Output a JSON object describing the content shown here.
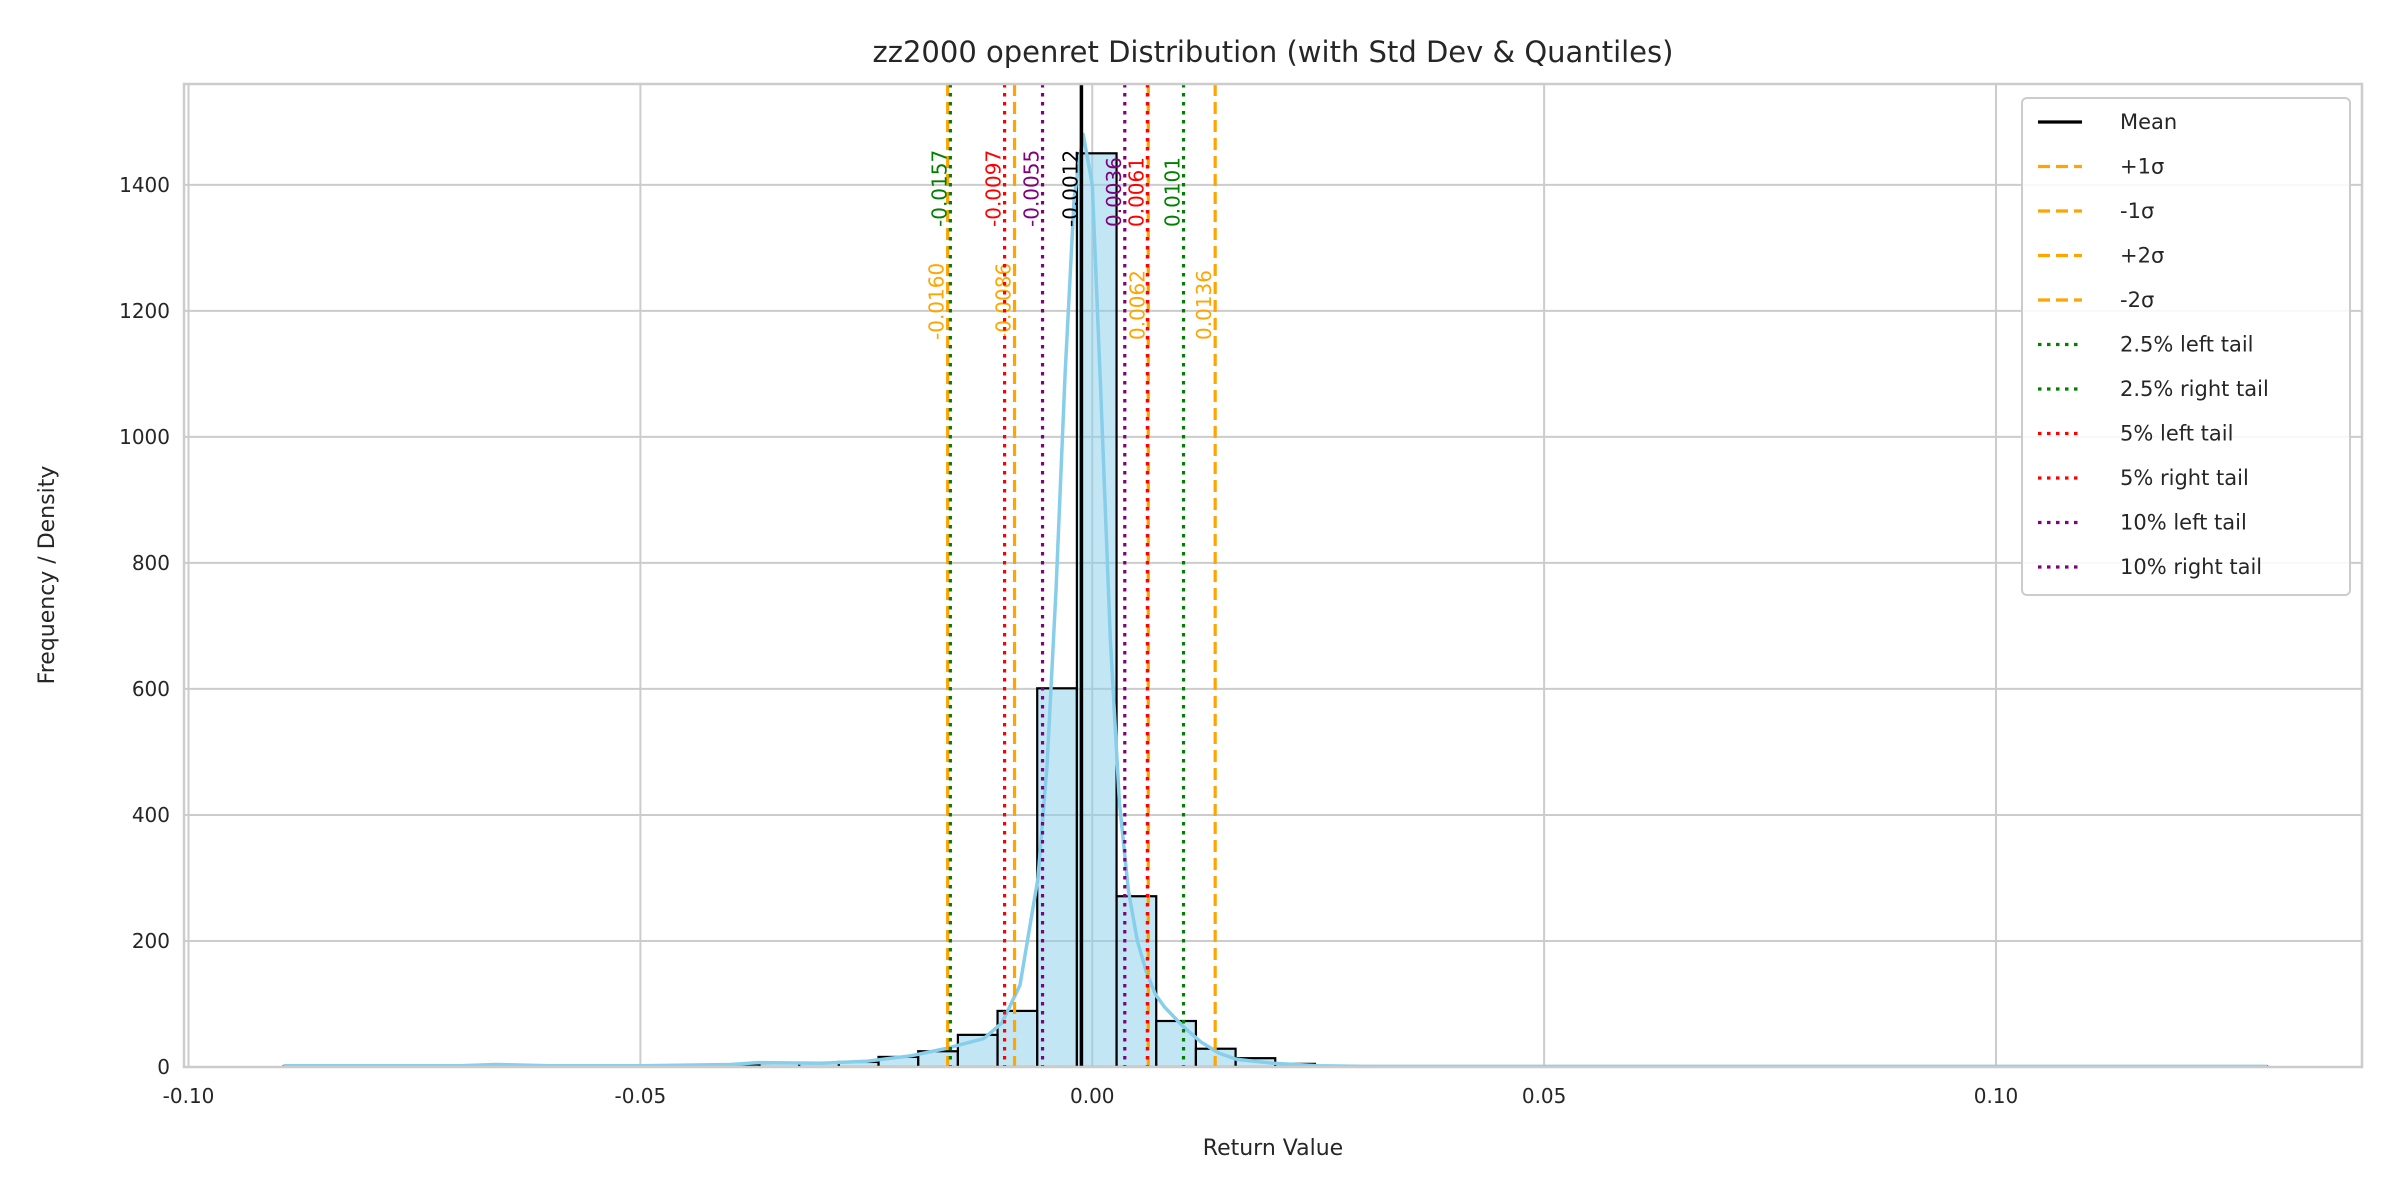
{
  "chart_data": {
    "type": "bar",
    "title": "zz2000 openret Distribution (with Std Dev & Quantiles)",
    "xlabel": "Return Value",
    "ylabel": "Frequency / Density",
    "xlim": [
      -0.1005,
      0.1405
    ],
    "ylim": [
      0,
      1560
    ],
    "grid": true,
    "legend_position": "top-right",
    "x_ticks": [
      {
        "value": -0.1,
        "label": "-0.10"
      },
      {
        "value": -0.05,
        "label": "-0.05"
      },
      {
        "value": 0.0,
        "label": "0.00"
      },
      {
        "value": 0.05,
        "label": "0.05"
      },
      {
        "value": 0.1,
        "label": "0.10"
      }
    ],
    "y_ticks": [
      {
        "value": 0,
        "label": "0"
      },
      {
        "value": 200,
        "label": "200"
      },
      {
        "value": 400,
        "label": "400"
      },
      {
        "value": 600,
        "label": "600"
      },
      {
        "value": 800,
        "label": "800"
      },
      {
        "value": 1000,
        "label": "1000"
      },
      {
        "value": 1200,
        "label": "1200"
      },
      {
        "value": 1400,
        "label": "1400"
      }
    ],
    "histogram": {
      "bin_start": -0.0895,
      "bin_width": 0.00439,
      "counts": [
        1,
        0,
        0,
        0,
        1,
        2,
        1,
        0,
        1,
        1,
        2,
        4,
        6,
        7,
        8,
        16,
        25,
        51,
        89,
        601,
        1450,
        271,
        73,
        29,
        14,
        5,
        2,
        1,
        1,
        0,
        1,
        0,
        0,
        0,
        1,
        0,
        0,
        0,
        0,
        0,
        0,
        0,
        0,
        0,
        0,
        0,
        0,
        0,
        0,
        1
      ],
      "fill": "#87ceeb",
      "edge": "#000000"
    },
    "kde": {
      "color": "#87ceeb",
      "x": [
        -0.0895,
        -0.07,
        -0.066,
        -0.06,
        -0.05,
        -0.04,
        -0.037,
        -0.03,
        -0.025,
        -0.02,
        -0.016,
        -0.012,
        -0.01,
        -0.008,
        -0.006,
        -0.005,
        -0.004,
        -0.003,
        -0.002,
        -0.001,
        0.0,
        0.001,
        0.002,
        0.003,
        0.004,
        0.005,
        0.006,
        0.007,
        0.008,
        0.01,
        0.012,
        0.014,
        0.016,
        0.02,
        0.025,
        0.03,
        0.05,
        0.07,
        0.1,
        0.13
      ],
      "y": [
        2,
        2,
        4,
        2,
        2,
        4,
        7,
        6,
        9,
        18,
        30,
        45,
        70,
        130,
        300,
        480,
        760,
        1100,
        1380,
        1480,
        1400,
        1050,
        680,
        420,
        280,
        200,
        150,
        115,
        95,
        65,
        40,
        22,
        12,
        6,
        2,
        1,
        1,
        1,
        1,
        1
      ]
    },
    "vlines": [
      {
        "name": "Mean",
        "value": -0.0012,
        "label": "-0.0012",
        "color": "#000000",
        "style": "solid"
      },
      {
        "name": "+1σ",
        "value": 0.0062,
        "label": "0.0062",
        "color": "#ffa500",
        "style": "dashed"
      },
      {
        "name": "-1σ",
        "value": -0.0086,
        "label": "-0.0086",
        "color": "#ffa500",
        "style": "dashed"
      },
      {
        "name": "+2σ",
        "value": 0.0136,
        "label": "0.0136",
        "color": "#ffa500",
        "style": "dashed"
      },
      {
        "name": "-2σ",
        "value": -0.016,
        "label": "-0.0160",
        "color": "#ffa500",
        "style": "dashed"
      },
      {
        "name": "2.5% left tail",
        "value": -0.0157,
        "label": "-0.0157",
        "color": "#008000",
        "style": "dotted"
      },
      {
        "name": "2.5% right tail",
        "value": 0.0101,
        "label": "0.0101",
        "color": "#008000",
        "style": "dotted"
      },
      {
        "name": "5% left tail",
        "value": -0.0097,
        "label": "-0.0097",
        "color": "#ff0000",
        "style": "dotted"
      },
      {
        "name": "5% right tail",
        "value": 0.0061,
        "label": "0.0061",
        "color": "#ff0000",
        "style": "dotted"
      },
      {
        "name": "10% left tail",
        "value": -0.0055,
        "label": "-0.0055",
        "color": "#800080",
        "style": "dotted"
      },
      {
        "name": "10% right tail",
        "value": 0.0036,
        "label": "0.0036",
        "color": "#800080",
        "style": "dotted"
      }
    ]
  }
}
